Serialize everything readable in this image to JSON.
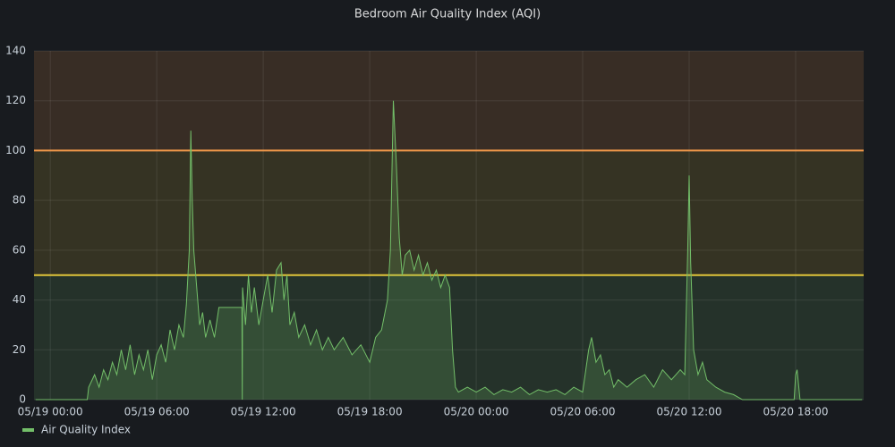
{
  "chart_data": {
    "type": "line",
    "title": "Bedroom Air Quality Index (AQI)",
    "x": [
      "05/18 23:10",
      "05/19 02:05",
      "05/19 02:10",
      "05/19 02:30",
      "05/19 02:45",
      "05/19 03:00",
      "05/19 03:15",
      "05/19 03:30",
      "05/19 03:45",
      "05/19 04:00",
      "05/19 04:15",
      "05/19 04:30",
      "05/19 04:45",
      "05/19 05:00",
      "05/19 05:15",
      "05/19 05:30",
      "05/19 05:45",
      "05/19 06:00",
      "05/19 06:15",
      "05/19 06:30",
      "05/19 06:45",
      "05/19 07:00",
      "05/19 07:15",
      "05/19 07:30",
      "05/19 07:40",
      "05/19 07:50",
      "05/19 07:55",
      "05/19 08:00",
      "05/19 08:05",
      "05/19 08:15",
      "05/19 08:25",
      "05/19 08:35",
      "05/19 08:45",
      "05/19 09:00",
      "05/19 09:15",
      "05/19 09:30",
      "05/19 10:48",
      "05/19 10:49",
      "05/19 10:50",
      "05/19 11:00",
      "05/19 11:10",
      "05/19 11:20",
      "05/19 11:30",
      "05/19 11:45",
      "05/19 12:00",
      "05/19 12:15",
      "05/19 12:30",
      "05/19 12:45",
      "05/19 13:00",
      "05/19 13:10",
      "05/19 13:20",
      "05/19 13:30",
      "05/19 13:45",
      "05/19 14:00",
      "05/19 14:20",
      "05/19 14:40",
      "05/19 15:00",
      "05/19 15:20",
      "05/19 15:40",
      "05/19 16:00",
      "05/19 16:30",
      "05/19 17:00",
      "05/19 17:30",
      "05/19 18:00",
      "05/19 18:20",
      "05/19 18:40",
      "05/19 19:00",
      "05/19 19:10",
      "05/19 19:20",
      "05/19 19:30",
      "05/19 19:40",
      "05/19 19:50",
      "05/19 20:00",
      "05/19 20:15",
      "05/19 20:30",
      "05/19 20:45",
      "05/19 21:00",
      "05/19 21:15",
      "05/19 21:30",
      "05/19 21:45",
      "05/19 22:00",
      "05/19 22:15",
      "05/19 22:30",
      "05/19 22:40",
      "05/19 22:50",
      "05/19 23:00",
      "05/19 23:30",
      "05/20 00:00",
      "05/20 00:30",
      "05/20 01:00",
      "05/20 01:30",
      "05/20 02:00",
      "05/20 02:30",
      "05/20 03:00",
      "05/20 03:30",
      "05/20 04:00",
      "05/20 04:30",
      "05/20 05:00",
      "05/20 05:30",
      "05/20 06:00",
      "05/20 06:20",
      "05/20 06:30",
      "05/20 06:45",
      "05/20 07:00",
      "05/20 07:15",
      "05/20 07:30",
      "05/20 07:45",
      "05/20 08:00",
      "05/20 08:30",
      "05/20 09:00",
      "05/20 09:30",
      "05/20 10:00",
      "05/20 10:30",
      "05/20 11:00",
      "05/20 11:30",
      "05/20 11:45",
      "05/20 11:55",
      "05/20 12:00",
      "05/20 12:05",
      "05/20 12:15",
      "05/20 12:30",
      "05/20 12:45",
      "05/20 13:00",
      "05/20 13:30",
      "05/20 14:00",
      "05/20 14:30",
      "05/20 15:00",
      "05/20 17:55",
      "05/20 18:00",
      "05/20 18:05",
      "05/20 18:15",
      "05/20 21:45"
    ],
    "series": [
      {
        "name": "Air Quality Index",
        "color": "#73bf69",
        "values": [
          0,
          0,
          5,
          10,
          5,
          12,
          8,
          15,
          10,
          20,
          12,
          22,
          10,
          18,
          12,
          20,
          8,
          18,
          22,
          15,
          28,
          20,
          30,
          25,
          38,
          60,
          108,
          80,
          60,
          45,
          30,
          35,
          25,
          32,
          25,
          37,
          37,
          0,
          45,
          30,
          50,
          35,
          45,
          30,
          40,
          50,
          35,
          52,
          55,
          40,
          50,
          30,
          35,
          25,
          30,
          22,
          28,
          20,
          25,
          20,
          25,
          18,
          22,
          15,
          25,
          28,
          40,
          60,
          120,
          95,
          65,
          50,
          58,
          60,
          52,
          58,
          50,
          55,
          48,
          52,
          45,
          50,
          45,
          20,
          5,
          3,
          5,
          3,
          5,
          2,
          4,
          3,
          5,
          2,
          4,
          3,
          4,
          2,
          5,
          3,
          20,
          25,
          15,
          18,
          10,
          12,
          5,
          8,
          5,
          8,
          10,
          5,
          12,
          8,
          12,
          10,
          60,
          90,
          55,
          20,
          10,
          15,
          8,
          5,
          3,
          2,
          0,
          0,
          10,
          12,
          0,
          0
        ]
      }
    ],
    "xlim": [
      "05/18 23:05",
      "05/20 21:50"
    ],
    "xticks": [
      "05/19 00:00",
      "05/19 06:00",
      "05/19 12:00",
      "05/19 18:00",
      "05/20 00:00",
      "05/20 06:00",
      "05/20 12:00",
      "05/20 18:00"
    ],
    "ylim": [
      0,
      140
    ],
    "yticks": [
      0,
      20,
      40,
      60,
      80,
      100,
      120,
      140
    ],
    "grid": true,
    "thresholds": [
      {
        "value": 50,
        "color": "#e0c43a"
      },
      {
        "value": 100,
        "color": "#f2994a"
      }
    ],
    "legend": "bottom-left"
  }
}
